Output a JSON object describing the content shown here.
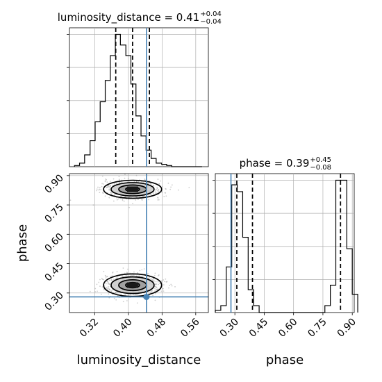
{
  "chart_data": [
    {
      "panel": "luminosity_distance marginal",
      "type": "histogram",
      "title": {
        "base": "luminosity_distance = 0.41",
        "sup": "+0.04",
        "sub": "−0.04"
      },
      "xlim": [
        0.26,
        0.59
      ],
      "bins": [
        0.272,
        0.284,
        0.296,
        0.309,
        0.321,
        0.333,
        0.345,
        0.357,
        0.369,
        0.381,
        0.394,
        0.406,
        0.418,
        0.43,
        0.442,
        0.454,
        0.466,
        0.479,
        0.491,
        0.503,
        0.515,
        0.527,
        0.539,
        0.551,
        0.563,
        0.575
      ],
      "counts": [
        1,
        3,
        10,
        22,
        38,
        55,
        73,
        94,
        112,
        103,
        94,
        70,
        43,
        26,
        14,
        7,
        3,
        2,
        1,
        0,
        0,
        0,
        0,
        0,
        0
      ],
      "quantiles": [
        0.37,
        0.41,
        0.45
      ],
      "truth": 0.443
    },
    {
      "panel": "phase marginal",
      "type": "histogram",
      "title": {
        "base": "phase = 0.39",
        "sup": "+0.45",
        "sub": "−0.08"
      },
      "xlim": [
        0.2,
        0.91
      ],
      "xticks": [
        "0.30",
        "0.45",
        "0.60",
        "0.75",
        "0.90"
      ],
      "xlabel": "phase",
      "bins": [
        0.2,
        0.228,
        0.256,
        0.284,
        0.312,
        0.34,
        0.368,
        0.396,
        0.424,
        0.452,
        0.48,
        0.508,
        0.536,
        0.564,
        0.592,
        0.62,
        0.648,
        0.676,
        0.704,
        0.732,
        0.76,
        0.788,
        0.816,
        0.844,
        0.872,
        0.9,
        0.928
      ],
      "counts": [
        1,
        3,
        20,
        56,
        53,
        33,
        10,
        3,
        0,
        0,
        0,
        0,
        0,
        0,
        0,
        0,
        0,
        0,
        0,
        0,
        3,
        12,
        58,
        58,
        28,
        8
      ],
      "quantiles": [
        0.31,
        0.39,
        0.84
      ],
      "truth": 0.28
    },
    {
      "panel": "phase vs luminosity_distance 2D",
      "type": "scatter",
      "xlabel": "luminosity_distance",
      "ylabel": "phase",
      "xlim": [
        0.26,
        0.59
      ],
      "ylim": [
        0.2,
        0.91
      ],
      "xticks": [
        "0.32",
        "0.40",
        "0.48",
        "0.56"
      ],
      "yticks": [
        "0.30",
        "0.45",
        "0.60",
        "0.75",
        "0.90"
      ],
      "modes": [
        {
          "center_x": 0.41,
          "center_y": 0.83,
          "core_sd_x": 0.03,
          "core_sd_y": 0.02
        },
        {
          "center_x": 0.41,
          "center_y": 0.34,
          "core_sd_x": 0.03,
          "core_sd_y": 0.025
        }
      ],
      "truth": {
        "x": 0.443,
        "y": 0.28
      }
    }
  ],
  "colors": {
    "truth": "#4682b4",
    "hist": "#000000",
    "scatter": "#9e9e9e",
    "grid": "#b0b0b0"
  }
}
